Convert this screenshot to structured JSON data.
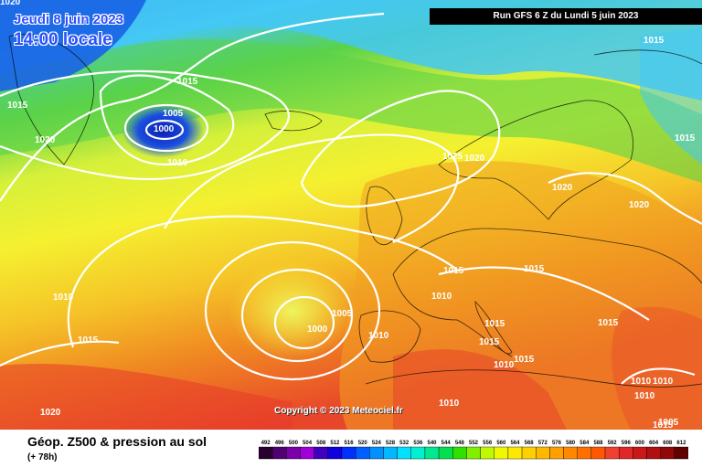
{
  "header": {
    "run_label": "Run GFS 6 Z du Lundi 5 juin 2023",
    "valid_date": "Jeudi 8 juin 2023",
    "valid_time": "14:00 locale"
  },
  "map": {
    "copyright": "Copyright © 2023 Meteociel.fr",
    "isobar_labels": [
      {
        "text": "1020"
      },
      {
        "text": "1015"
      },
      {
        "text": "1020"
      },
      {
        "text": "1015"
      },
      {
        "text": "1005"
      },
      {
        "text": "1000"
      },
      {
        "text": "1010"
      },
      {
        "text": "1025"
      },
      {
        "text": "1020"
      },
      {
        "text": "1015"
      },
      {
        "text": "1015"
      },
      {
        "text": "1020"
      },
      {
        "text": "1020"
      },
      {
        "text": "1010"
      },
      {
        "text": "1015"
      },
      {
        "text": "1015"
      },
      {
        "text": "1010"
      },
      {
        "text": "1005"
      },
      {
        "text": "1000"
      },
      {
        "text": "1010"
      },
      {
        "text": "1015"
      },
      {
        "text": "1015"
      },
      {
        "text": "1015"
      },
      {
        "text": "1015"
      },
      {
        "text": "1015"
      },
      {
        "text": "1010"
      },
      {
        "text": "1010"
      },
      {
        "text": "1010"
      },
      {
        "text": "1010"
      },
      {
        "text": "1005"
      },
      {
        "text": "1010"
      },
      {
        "text": "1020"
      },
      {
        "text": "1015"
      }
    ],
    "colors": {
      "sea_blue": "#1a63e6",
      "cyan": "#44c8f5",
      "green": "#5ad24a",
      "yellow": "#f5f030",
      "orange": "#f0a020",
      "red": "#e83a2a",
      "isobar": "#ffffff"
    }
  },
  "footer": {
    "parameter": "Géop. Z500 & pression au sol",
    "lead_time": "(+ 78h)"
  },
  "legend": {
    "ticks": [
      "492",
      "496",
      "500",
      "504",
      "508",
      "512",
      "516",
      "520",
      "524",
      "528",
      "532",
      "536",
      "540",
      "544",
      "548",
      "552",
      "556",
      "560",
      "564",
      "568",
      "572",
      "576",
      "580",
      "584",
      "588",
      "592",
      "596",
      "600",
      "604",
      "608",
      "612"
    ],
    "colors": [
      "#2a0030",
      "#500070",
      "#7a00a8",
      "#a000d8",
      "#4000c0",
      "#1000e0",
      "#0030ff",
      "#0060ff",
      "#0090ff",
      "#00b8ff",
      "#00e0ff",
      "#00f0d0",
      "#00e890",
      "#00e050",
      "#30e000",
      "#80f000",
      "#c0f800",
      "#f0f800",
      "#ffe800",
      "#ffd000",
      "#ffb800",
      "#ffa000",
      "#ff8800",
      "#ff7000",
      "#ff5800",
      "#f04030",
      "#e02828",
      "#c81818",
      "#b01010",
      "#900808",
      "#600000"
    ]
  }
}
